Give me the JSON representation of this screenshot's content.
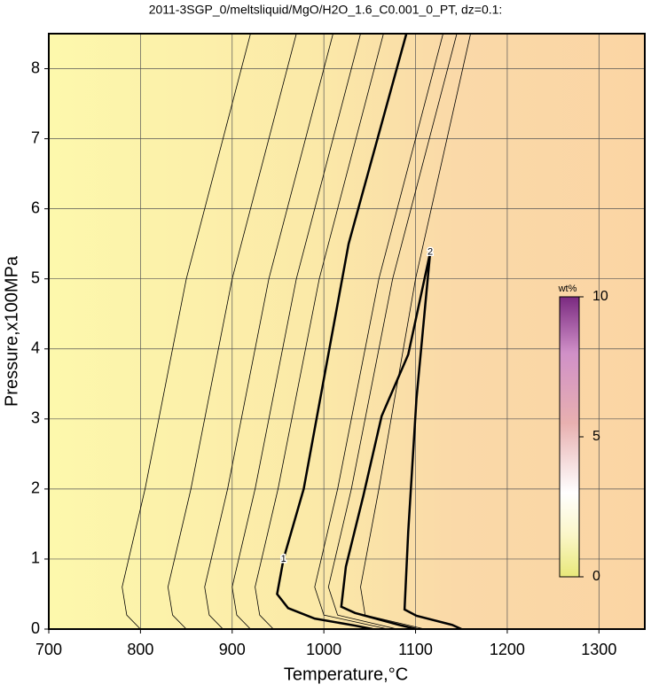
{
  "chart_data": {
    "type": "contour",
    "title": "2011-3SGP_0/meltsliquid/MgO/H2O_1.6_C0.001_0_PT, dz=0.1:",
    "x_label": "Temperature,°C",
    "y_label": "Pressure,x100MPa",
    "xlim": [
      700,
      1350
    ],
    "ylim": [
      0,
      8.5
    ],
    "xticks": [
      700,
      800,
      900,
      1000,
      1100,
      1200,
      1300
    ],
    "yticks": [
      0,
      1,
      2,
      3,
      4,
      5,
      6,
      7,
      8
    ],
    "grid": true,
    "contours": [
      {
        "level": 1,
        "bold": true,
        "x": [
          1053,
          1034,
          990,
          961,
          949,
          956,
          978,
          1027,
          1090
        ],
        "y": [
          0,
          0.05,
          0.15,
          0.3,
          0.5,
          1,
          2,
          5.5,
          8.5
        ]
      },
      {
        "level": 2,
        "bold": true,
        "x": [
          1101,
          1082,
          1034,
          1019,
          1024,
          1043,
          1063,
          1092,
          1116,
          1101,
          1092,
          1088,
          1101,
          1140,
          1150
        ],
        "y": [
          0,
          0.06,
          0.23,
          0.32,
          0.89,
          1.9,
          3.04,
          3.92,
          5.38,
          3.29,
          1.39,
          0.28,
          0.19,
          0.06,
          0
        ]
      },
      {
        "bold": false,
        "x": [
          800,
          785,
          780,
          805,
          850,
          920
        ],
        "y": [
          0,
          0.2,
          0.6,
          2,
          5,
          8.5
        ]
      },
      {
        "bold": false,
        "x": [
          850,
          835,
          830,
          855,
          900,
          970
        ],
        "y": [
          0,
          0.2,
          0.6,
          2,
          5,
          8.5
        ]
      },
      {
        "bold": false,
        "x": [
          890,
          875,
          870,
          895,
          940,
          1010
        ],
        "y": [
          0,
          0.2,
          0.6,
          2,
          5,
          8.5
        ]
      },
      {
        "bold": false,
        "x": [
          920,
          905,
          900,
          925,
          970,
          1040
        ],
        "y": [
          0,
          0.2,
          0.6,
          2,
          5,
          8.5
        ]
      },
      {
        "bold": false,
        "x": [
          945,
          930,
          925,
          950,
          995,
          1065
        ],
        "y": [
          0,
          0.2,
          0.6,
          2,
          5,
          8.5
        ]
      },
      {
        "bold": false,
        "x": [
          1070,
          1000,
          990,
          1015,
          1060,
          1130
        ],
        "y": [
          0,
          0.2,
          0.6,
          2,
          5,
          8.5
        ]
      },
      {
        "bold": false,
        "x": [
          1080,
          1015,
          1005,
          1030,
          1075,
          1145
        ],
        "y": [
          0,
          0.2,
          0.6,
          2,
          5,
          8.5
        ]
      },
      {
        "bold": false,
        "x": [
          1110,
          1045,
          1040,
          1060,
          1100,
          1160
        ],
        "y": [
          0,
          0.2,
          0.6,
          2,
          5,
          8.5
        ]
      }
    ],
    "colorbar": {
      "label": "wt%",
      "lim": [
        0,
        10
      ],
      "ticks": [
        0,
        5,
        10
      ]
    }
  }
}
